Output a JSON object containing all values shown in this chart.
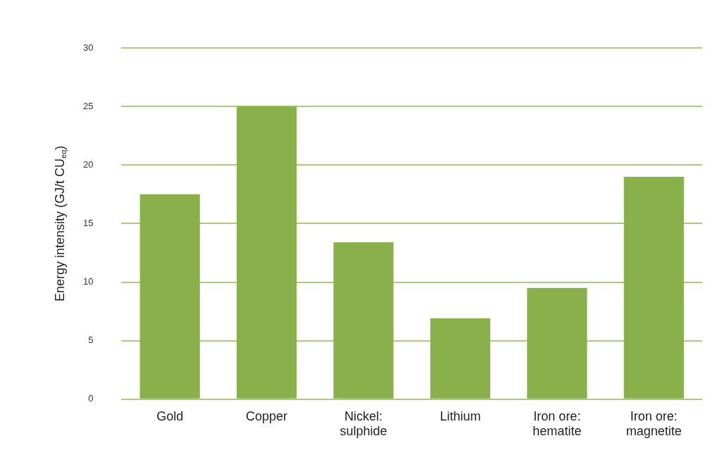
{
  "chart_data": {
    "type": "bar",
    "ylabel": "Energy intensity (GJ/t CU$_{eq}$)",
    "categories": [
      "Gold",
      "Copper",
      "Nickel: sulphide",
      "Lithium",
      "Iron ore: hematite",
      "Iron ore: magnetite"
    ],
    "values": [
      17.5,
      25,
      13.4,
      6.9,
      9.5,
      19
    ],
    "color": "#8ab04b",
    "ylim": [
      0,
      30
    ],
    "yticks": [
      0,
      5,
      10,
      15,
      20,
      25,
      30
    ],
    "grid": "y",
    "legend": false
  }
}
